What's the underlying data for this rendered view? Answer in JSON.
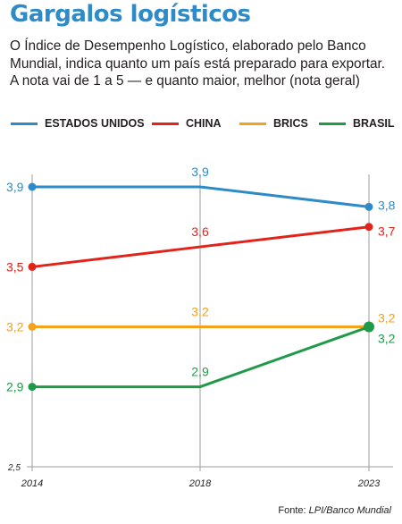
{
  "header": {
    "title": "Gargalos logísticos",
    "subtitle": "O Índice de Desempenho Logístico, elaborado pelo Banco Mundial, indica quanto um país está preparado para exportar. A nota vai de 1 a 5 — e quanto maior, melhor (nota geral)"
  },
  "source": {
    "prefix": "Fonte: ",
    "name": "LPI/Banco Mundial"
  },
  "colors": {
    "estados_unidos": "#2e8bc9",
    "china": "#e2231a",
    "brics": "#f4a11d",
    "brasil": "#1f9a48",
    "axis": "#9d9d9d",
    "text": "#231f20"
  },
  "chart_data": {
    "type": "line",
    "title": "Gargalos logísticos",
    "x": [
      "2014",
      "2018",
      "2023"
    ],
    "ylim": [
      2.5,
      4.0
    ],
    "y_axis_ticks": [
      "3,9",
      "3,5",
      "3,2",
      "2,9",
      "2,5"
    ],
    "grid": false,
    "legend_position": "top",
    "series": [
      {
        "name": "ESTADOS UNIDOS",
        "values": [
          3.9,
          3.9,
          3.8
        ],
        "labels": [
          "3,9",
          "3,9",
          "3,8"
        ],
        "color": "#2e8bc9"
      },
      {
        "name": "CHINA",
        "values": [
          3.5,
          3.6,
          3.7
        ],
        "labels": [
          "3,5",
          "3,6",
          "3,7"
        ],
        "color": "#e2231a"
      },
      {
        "name": "BRICS",
        "values": [
          3.2,
          3.2,
          3.2
        ],
        "labels": [
          "3,2",
          "3,2",
          "3,2"
        ],
        "color": "#f4a11d"
      },
      {
        "name": "BRASIL",
        "values": [
          2.9,
          2.9,
          3.2
        ],
        "labels": [
          "2,9",
          "2,9",
          "3,2"
        ],
        "color": "#1f9a48"
      }
    ]
  }
}
